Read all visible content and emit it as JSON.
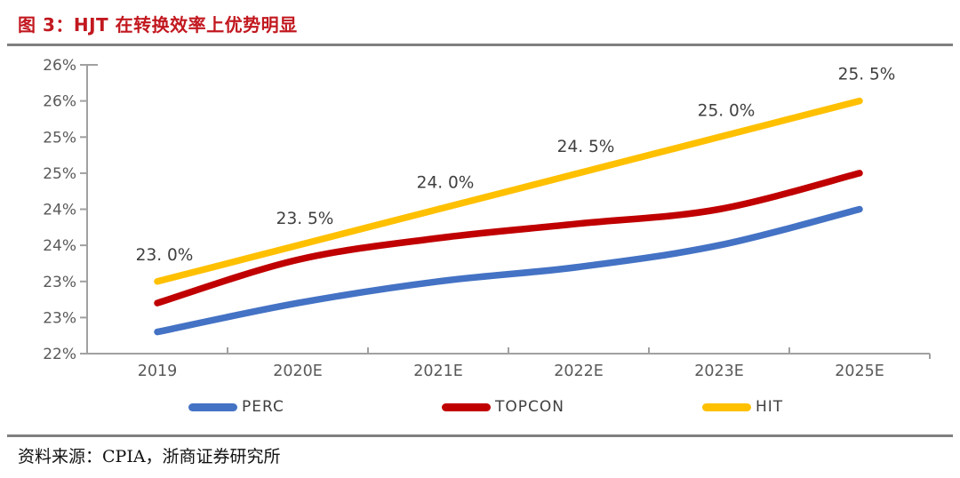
{
  "figure": {
    "title": "图 3：HJT 在转换效率上优势明显",
    "source": "资料来源：CPIA，浙商证券研究所"
  },
  "colors": {
    "title_red": "#c2181f",
    "perc_blue": "#4472c4",
    "topcon_red": "#c00000",
    "hit_yellow": "#ffc000",
    "axis_gray": "#a0a0a0",
    "tick_text": "#595959",
    "data_label_text": "#3f3f3f",
    "rule_gray": "#7f7f7f"
  },
  "chart_data": {
    "type": "line",
    "title": "",
    "xlabel": "",
    "ylabel": "",
    "categories": [
      "2019",
      "2020E",
      "2021E",
      "2022E",
      "2023E",
      "2025E"
    ],
    "series": [
      {
        "name": "PERC",
        "color_key": "perc_blue",
        "values": [
          22.3,
          22.7,
          23.0,
          23.2,
          23.5,
          24.0
        ]
      },
      {
        "name": "TOPCON",
        "color_key": "topcon_red",
        "values": [
          22.7,
          23.3,
          23.6,
          23.8,
          24.0,
          24.5
        ]
      },
      {
        "name": "HIT",
        "color_key": "hit_yellow",
        "values": [
          23.0,
          23.5,
          24.0,
          24.5,
          25.0,
          25.5
        ],
        "data_labels": [
          "23. 0%",
          "23. 5%",
          "24. 0%",
          "24. 5%",
          "25. 0%",
          "25. 5%"
        ]
      }
    ],
    "ylim": [
      22,
      26
    ],
    "y_tick_step": 0.5,
    "y_tick_labels": [
      "26%",
      "26%",
      "25%",
      "25%",
      "24%",
      "24%",
      "23%",
      "23%",
      "22%"
    ],
    "grid": false,
    "legend_position": "bottom"
  }
}
